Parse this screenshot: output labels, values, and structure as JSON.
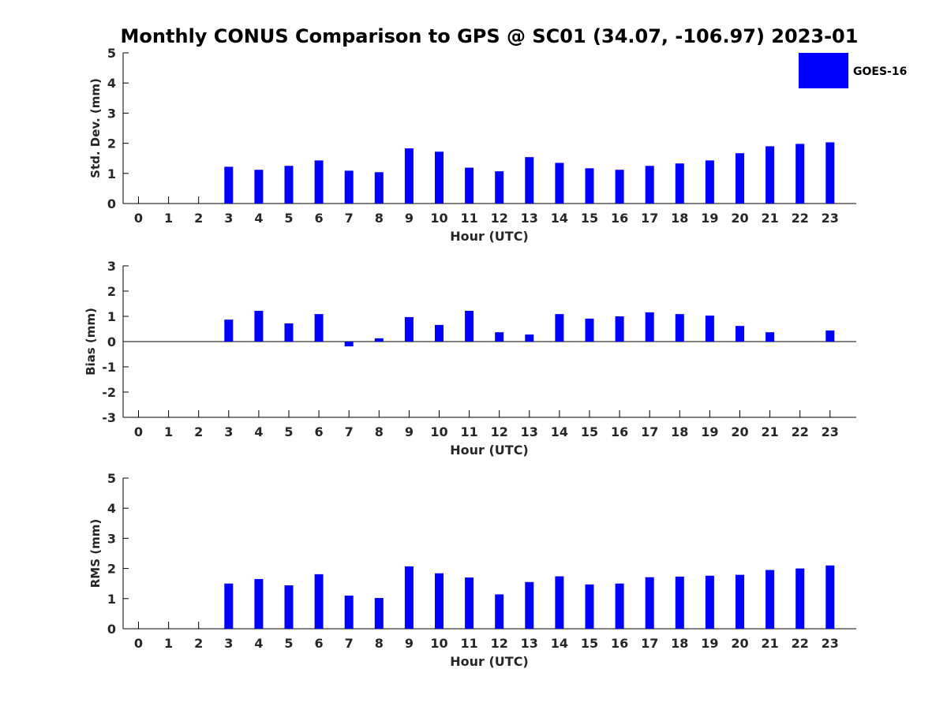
{
  "title": "Monthly CONUS Comparison to GPS @ SC01 (34.07, -106.97) 2023-01",
  "bar_color": "#0000ff",
  "legend": {
    "label": "GOES-16",
    "placement": "top-right"
  },
  "chart_data": [
    {
      "type": "bar",
      "ylabel": "Std. Dev. (mm)",
      "xlabel": "Hour (UTC)",
      "ylim": [
        0,
        5
      ],
      "yticks": [
        0,
        1,
        2,
        3,
        4,
        5
      ],
      "categories": [
        "0",
        "1",
        "2",
        "3",
        "4",
        "5",
        "6",
        "7",
        "8",
        "9",
        "10",
        "11",
        "12",
        "13",
        "14",
        "15",
        "16",
        "17",
        "18",
        "19",
        "20",
        "21",
        "22",
        "23"
      ],
      "series": [
        {
          "name": "GOES-16",
          "values": [
            null,
            null,
            null,
            1.22,
            1.12,
            1.25,
            1.43,
            1.09,
            1.04,
            1.83,
            1.72,
            1.19,
            1.07,
            1.54,
            1.35,
            1.17,
            1.12,
            1.25,
            1.33,
            1.43,
            1.67,
            1.9,
            1.98,
            2.03
          ]
        }
      ]
    },
    {
      "type": "bar",
      "ylabel": "Bias (mm)",
      "xlabel": "Hour (UTC)",
      "ylim": [
        -3,
        3
      ],
      "yticks": [
        -3,
        -2,
        -1,
        0,
        1,
        2,
        3
      ],
      "categories": [
        "0",
        "1",
        "2",
        "3",
        "4",
        "5",
        "6",
        "7",
        "8",
        "9",
        "10",
        "11",
        "12",
        "13",
        "14",
        "15",
        "16",
        "17",
        "18",
        "19",
        "20",
        "21",
        "22",
        "23"
      ],
      "series": [
        {
          "name": "GOES-16",
          "values": [
            null,
            null,
            null,
            0.87,
            1.22,
            0.72,
            1.09,
            -0.19,
            0.13,
            0.97,
            0.66,
            1.22,
            0.37,
            0.28,
            1.09,
            0.91,
            1.0,
            1.16,
            1.09,
            1.03,
            0.62,
            0.37,
            0.0,
            0.44
          ]
        }
      ]
    },
    {
      "type": "bar",
      "ylabel": "RMS (mm)",
      "xlabel": "Hour (UTC)",
      "ylim": [
        0,
        5
      ],
      "yticks": [
        0,
        1,
        2,
        3,
        4,
        5
      ],
      "categories": [
        "0",
        "1",
        "2",
        "3",
        "4",
        "5",
        "6",
        "7",
        "8",
        "9",
        "10",
        "11",
        "12",
        "13",
        "14",
        "15",
        "16",
        "17",
        "18",
        "19",
        "20",
        "21",
        "22",
        "23"
      ],
      "series": [
        {
          "name": "GOES-16",
          "values": [
            null,
            null,
            null,
            1.5,
            1.65,
            1.44,
            1.81,
            1.1,
            1.02,
            2.07,
            1.84,
            1.7,
            1.14,
            1.55,
            1.74,
            1.47,
            1.5,
            1.71,
            1.73,
            1.76,
            1.79,
            1.95,
            2.0,
            2.1
          ]
        }
      ]
    }
  ]
}
